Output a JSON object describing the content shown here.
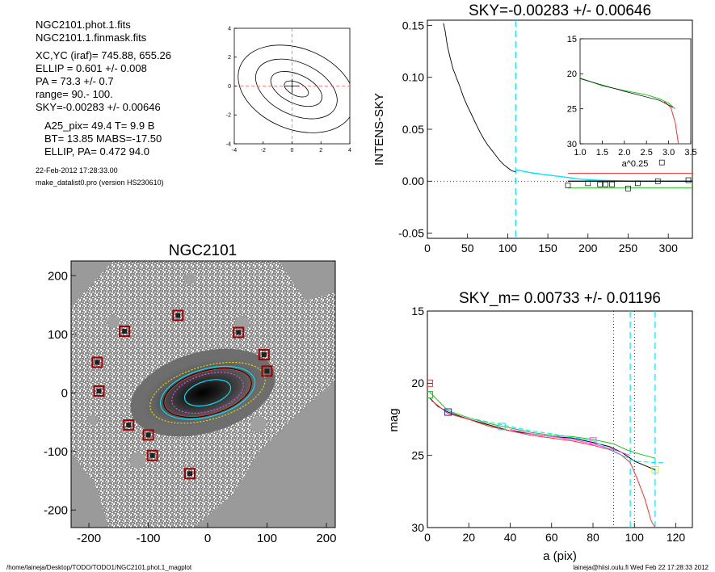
{
  "header_lines": [
    "NGC2101.phot.1.fits",
    "NGC2101.1.finmask.fits",
    "XC,YC (iraf)=   745.88, 655.26",
    "ELLIP = 0.601 +/- 0.008",
    "PA    =  73.3 +/-   0.7",
    "range=   90.-  100.",
    "SKY=-0.00283 +/- 0.00646",
    "A25_pix= 49.4   T= 9.9  B",
    "BT=  13.85   MABS=-17.50",
    "ELLIP, PA= 0.472   94.0"
  ],
  "timestamp": "22-Feb-2012 17:28:33.00",
  "program": "make_datalist0.pro (version HS230610)",
  "footer": {
    "left": "/home/laineja/Desktop/TODO/TODO1/NGC2101.phot.1_magplot",
    "right": "laineja@hiisi.oulu.fi  Wed Feb 22 17:28:33 2012"
  },
  "colors": {
    "axis": "#000000",
    "cyan": "#00e5ff",
    "red": "#ff3030",
    "green": "#20c020",
    "magenta": "#ff40ff",
    "yellow": "#e6e600",
    "marker_red": "#a00000",
    "image_grey": "#9a9a9a"
  },
  "chart_data": [
    {
      "id": "contour",
      "type": "contour",
      "title": "",
      "xlim": [
        -4,
        4
      ],
      "ylim": [
        -4,
        4
      ],
      "xticks": [
        "-4",
        "-2",
        "0",
        "2",
        "4"
      ],
      "yticks": [
        "4",
        "2",
        "0",
        "-2",
        "-4"
      ],
      "center": [
        0,
        0
      ],
      "ellipses": [
        {
          "a": 0.9,
          "b": 0.45,
          "angle_deg": -25
        },
        {
          "a": 1.9,
          "b": 1.0,
          "angle_deg": -25
        },
        {
          "a": 3.0,
          "b": 1.8,
          "angle_deg": -25
        },
        {
          "a": 4.2,
          "b": 2.8,
          "angle_deg": -22
        }
      ]
    },
    {
      "id": "sky",
      "type": "line",
      "title": "SKY=-0.00283 +/- 0.00646",
      "xlabel": "",
      "ylabel": "INTENS-SKY",
      "xlim": [
        0,
        330
      ],
      "ylim": [
        -0.055,
        0.155
      ],
      "xticks": [
        "0",
        "50",
        "100",
        "150",
        "200",
        "250",
        "300"
      ],
      "yticks": [
        "-0.05",
        "0.00",
        "0.05",
        "0.10",
        "0.15"
      ],
      "cyan_vline": 110,
      "profile": [
        [
          20,
          0.152
        ],
        [
          22,
          0.145
        ],
        [
          25,
          0.13
        ],
        [
          28,
          0.12
        ],
        [
          32,
          0.108
        ],
        [
          36,
          0.1
        ],
        [
          40,
          0.092
        ],
        [
          45,
          0.081
        ],
        [
          50,
          0.072
        ],
        [
          55,
          0.064
        ],
        [
          60,
          0.056
        ],
        [
          65,
          0.048
        ],
        [
          70,
          0.041
        ],
        [
          75,
          0.035
        ],
        [
          80,
          0.03
        ],
        [
          85,
          0.025
        ],
        [
          90,
          0.02
        ],
        [
          95,
          0.016
        ],
        [
          100,
          0.013
        ],
        [
          105,
          0.01
        ],
        [
          110,
          0.009
        ]
      ],
      "profile_fit": [
        [
          110,
          0.011
        ],
        [
          130,
          0.008
        ],
        [
          150,
          0.006
        ],
        [
          170,
          0.004
        ],
        [
          190,
          0.002
        ],
        [
          210,
          0.001
        ],
        [
          230,
          0.0005
        ],
        [
          260,
          0.0
        ],
        [
          330,
          0.0
        ]
      ],
      "red_level": 0.0075,
      "green_level": -0.0065,
      "black_level": 0.0,
      "squares": [
        [
          175,
          -0.004
        ],
        [
          200,
          -0.002
        ],
        [
          215,
          -0.003
        ],
        [
          222,
          -0.003
        ],
        [
          230,
          -0.003
        ],
        [
          250,
          -0.007
        ],
        [
          262,
          -0.002
        ],
        [
          287,
          0.0
        ],
        [
          292,
          0.018
        ],
        [
          325,
          0.001
        ]
      ],
      "inset": {
        "xlabel": "a^0.25",
        "xlim": [
          1.0,
          3.5
        ],
        "ylim": [
          15,
          30
        ],
        "xticks": [
          "1.0",
          "1.5",
          "2.0",
          "2.5",
          "3.0",
          "3.5"
        ],
        "yticks": [
          "15",
          "20",
          "25",
          "30"
        ],
        "green_profile": [
          [
            1.0,
            20.6
          ],
          [
            1.5,
            21.7
          ],
          [
            2.0,
            22.4
          ],
          [
            2.5,
            23.0
          ],
          [
            2.8,
            23.6
          ],
          [
            3.0,
            24.2
          ],
          [
            3.15,
            25.0
          ]
        ],
        "red_profile": [
          [
            2.9,
            24.0
          ],
          [
            3.05,
            24.8
          ],
          [
            3.15,
            27.0
          ],
          [
            3.22,
            30.0
          ]
        ]
      }
    },
    {
      "id": "image",
      "type": "image",
      "title": "NGC2101",
      "xlim": [
        -230,
        215
      ],
      "ylim": [
        -230,
        225
      ],
      "xticks": [
        "-200",
        "-100",
        "0",
        "100",
        "200"
      ],
      "yticks": [
        "200",
        "100",
        "0",
        "-100",
        "-200"
      ],
      "galaxy_center": [
        0,
        0
      ],
      "ellipses": [
        {
          "a": 100,
          "b": 45,
          "angle_deg": 16,
          "color": "yellow"
        },
        {
          "a": 82,
          "b": 40,
          "angle_deg": 16,
          "color": "cyan"
        },
        {
          "a": 75,
          "b": 36,
          "angle_deg": 16,
          "color": "red"
        },
        {
          "a": 62,
          "b": 31,
          "angle_deg": 16,
          "color": "magenta"
        },
        {
          "a": 40,
          "b": 20,
          "angle_deg": 16,
          "color": "cyan"
        }
      ],
      "markers": [
        [
          -50,
          132
        ],
        [
          -140,
          105
        ],
        [
          52,
          103
        ],
        [
          95,
          65
        ],
        [
          -186,
          52
        ],
        [
          100,
          37
        ],
        [
          -183,
          3
        ],
        [
          -133,
          -55
        ],
        [
          -100,
          -72
        ],
        [
          -93,
          -107
        ],
        [
          -30,
          -138
        ]
      ]
    },
    {
      "id": "magprofile",
      "type": "line",
      "title": "SKY_m=  0.00733 +/- 0.01196",
      "xlabel": "a (pix)",
      "ylabel": "mag",
      "xlim": [
        0,
        128
      ],
      "ylim": [
        15,
        30
      ],
      "xticks": [
        "0",
        "20",
        "40",
        "60",
        "80",
        "100",
        "120"
      ],
      "yticks": [
        "15",
        "20",
        "25",
        "30"
      ],
      "dotted_vlines": [
        90,
        100
      ],
      "cyan_vlines": [
        98,
        110
      ],
      "series": [
        {
          "color": "black",
          "values": [
            [
              1,
              21.0
            ],
            [
              5,
              21.6
            ],
            [
              10,
              22.0
            ],
            [
              20,
              22.5
            ],
            [
              30,
              22.9
            ],
            [
              40,
              23.3
            ],
            [
              50,
              23.5
            ],
            [
              60,
              23.7
            ],
            [
              70,
              23.8
            ],
            [
              80,
              24.1
            ],
            [
              88,
              24.4
            ],
            [
              94,
              24.8
            ],
            [
              98,
              25.2
            ],
            [
              100,
              25.4
            ],
            [
              105,
              25.7
            ],
            [
              110,
              26.0
            ]
          ]
        },
        {
          "color": "red",
          "values": [
            [
              2,
              21.2
            ],
            [
              10,
              22.1
            ],
            [
              20,
              22.5
            ],
            [
              30,
              23.0
            ],
            [
              40,
              23.3
            ],
            [
              50,
              23.6
            ],
            [
              60,
              23.8
            ],
            [
              70,
              24.0
            ],
            [
              80,
              24.3
            ],
            [
              88,
              24.6
            ],
            [
              94,
              25.0
            ],
            [
              98,
              25.5
            ],
            [
              101,
              26.5
            ],
            [
              105,
              28.0
            ],
            [
              108,
              29.5
            ],
            [
              110,
              30.0
            ]
          ]
        },
        {
          "color": "green",
          "values": [
            [
              1,
              20.6
            ],
            [
              10,
              21.9
            ],
            [
              20,
              22.4
            ],
            [
              30,
              22.8
            ],
            [
              40,
              23.1
            ],
            [
              50,
              23.4
            ],
            [
              60,
              23.6
            ],
            [
              70,
              23.7
            ],
            [
              80,
              23.9
            ],
            [
              90,
              24.2
            ],
            [
              96,
              24.6
            ],
            [
              100,
              24.8
            ],
            [
              105,
              25.0
            ],
            [
              110,
              25.2
            ]
          ]
        },
        {
          "color": "magenta",
          "values": [
            [
              40,
              23.2
            ],
            [
              50,
              23.5
            ],
            [
              60,
              23.7
            ],
            [
              70,
              23.9
            ],
            [
              80,
              24.2
            ],
            [
              90,
              24.6
            ],
            [
              98,
              25.0
            ]
          ]
        },
        {
          "color": "cyan",
          "values": [
            [
              20,
              22.4
            ],
            [
              30,
              22.7
            ],
            [
              40,
              23.0
            ],
            [
              50,
              23.3
            ],
            [
              60,
              23.5
            ],
            [
              80,
              24.0
            ],
            [
              100,
              25.4
            ],
            [
              110,
              25.5
            ],
            [
              115,
              25.5
            ]
          ]
        }
      ],
      "markers": [
        {
          "x": 1,
          "y": 20.0,
          "color": "red"
        },
        {
          "x": 1,
          "y": 20.8,
          "color": "green"
        },
        {
          "x": 10,
          "y": 22.0,
          "color": "blue"
        },
        {
          "x": 36,
          "y": 23.0,
          "color": "cyan"
        },
        {
          "x": 80,
          "y": 24.0,
          "color": "magenta"
        },
        {
          "x": 110,
          "y": 26.0,
          "color": "yellow"
        }
      ]
    }
  ]
}
